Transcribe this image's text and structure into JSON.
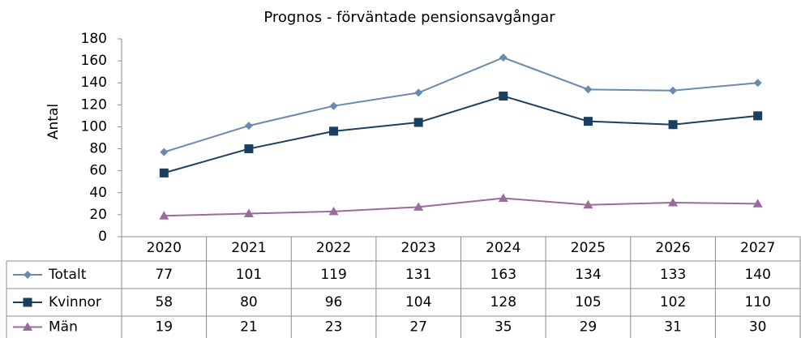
{
  "chart_data": {
    "type": "line",
    "title": "Prognos  - förväntade pensionsavgångar",
    "y_label": "Antal",
    "categories": [
      "2020",
      "2021",
      "2022",
      "2023",
      "2024",
      "2025",
      "2026",
      "2027"
    ],
    "series": [
      {
        "name": "Totalt",
        "color": "#6a8ab0",
        "marker": "diamond",
        "values": [
          77,
          101,
          119,
          131,
          163,
          134,
          133,
          140
        ]
      },
      {
        "name": "Kvinnor",
        "color": "#1b3f5f",
        "marker": "square",
        "values": [
          58,
          80,
          96,
          104,
          128,
          105,
          102,
          110
        ]
      },
      {
        "name": "Män",
        "color": "#9a6b9c",
        "marker": "triangle",
        "values": [
          19,
          21,
          23,
          27,
          35,
          29,
          31,
          30
        ]
      }
    ],
    "ylim": [
      0,
      180
    ],
    "yticks": [
      0,
      20,
      40,
      60,
      80,
      100,
      120,
      140,
      160,
      180
    ],
    "grid": false
  }
}
